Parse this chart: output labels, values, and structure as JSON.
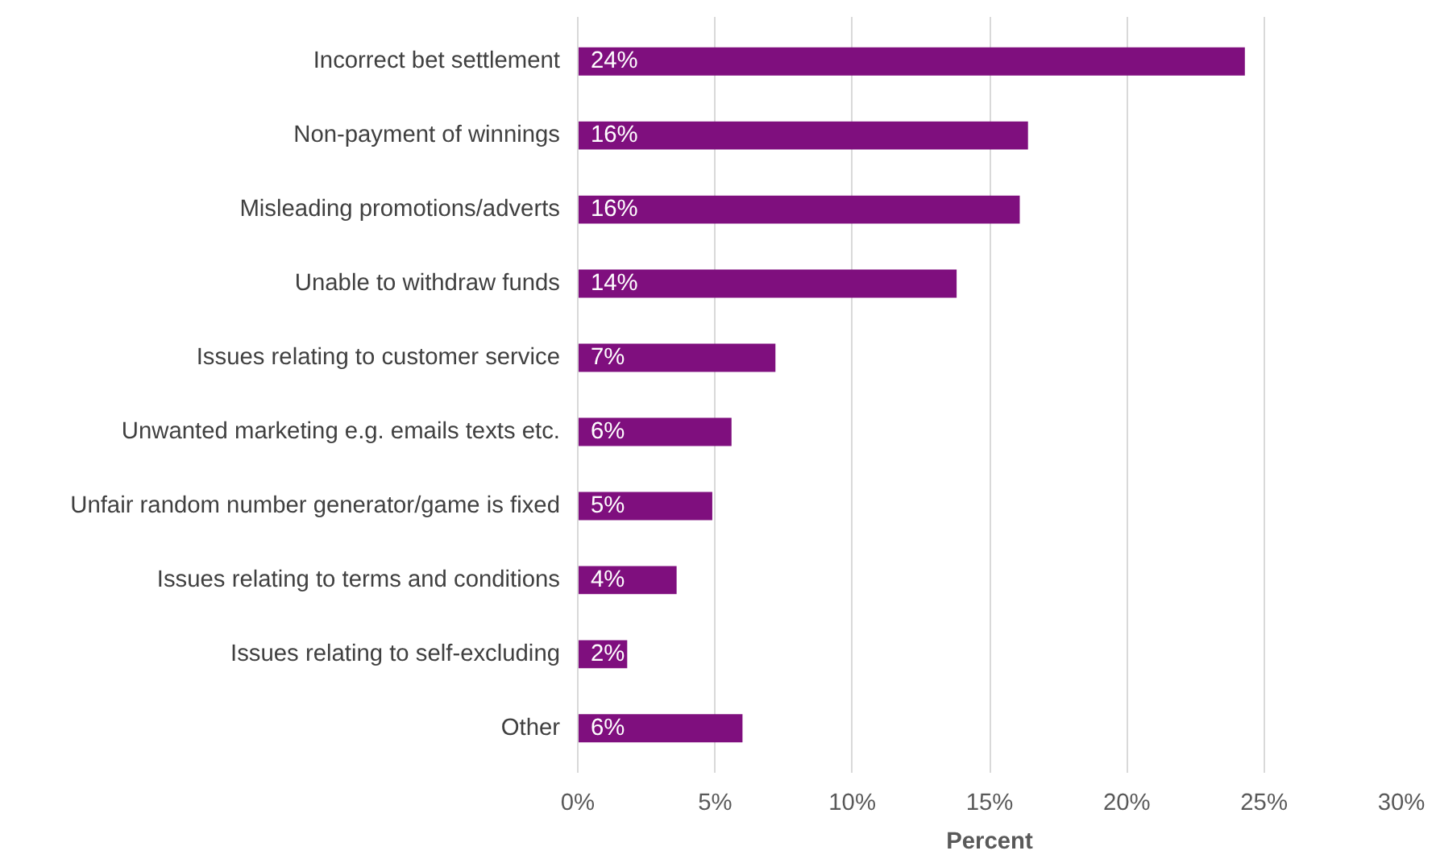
{
  "chart_data": {
    "type": "bar",
    "orientation": "horizontal",
    "xlabel": "Percent",
    "categories": [
      "Incorrect bet settlement",
      "Non-payment of winnings",
      "Misleading promotions/adverts",
      "Unable to withdraw funds",
      "Issues relating to customer service",
      "Unwanted marketing e.g. emails texts etc.",
      "Unfair random number generator/game is fixed",
      "Issues relating to terms and conditions",
      "Issues relating to self-excluding",
      "Other"
    ],
    "values": [
      24.3,
      16.4,
      16.1,
      13.8,
      7.2,
      5.6,
      4.9,
      3.6,
      1.8,
      6.0
    ],
    "value_labels": [
      "24%",
      "16%",
      "16%",
      "14%",
      "7%",
      "6%",
      "5%",
      "4%",
      "2%",
      "6%"
    ],
    "color": "#7f0f7e",
    "xlim": [
      0,
      30
    ],
    "xticks": [
      {
        "value": 0,
        "label": "0%"
      },
      {
        "value": 5,
        "label": "5%"
      },
      {
        "value": 10,
        "label": "10%"
      },
      {
        "value": 15,
        "label": "15%"
      },
      {
        "value": 20,
        "label": "20%"
      },
      {
        "value": 25,
        "label": "25%"
      },
      {
        "value": 30,
        "label": "30%"
      }
    ],
    "grid": "x"
  }
}
